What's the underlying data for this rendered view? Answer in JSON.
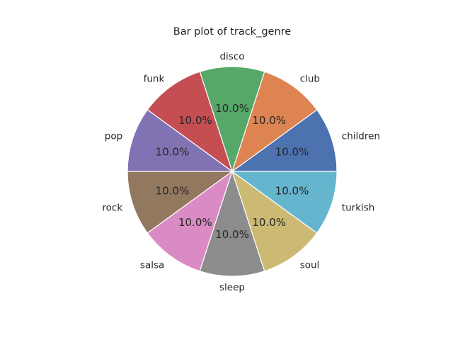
{
  "chart_data": {
    "type": "pie",
    "title": "Bar plot of track_genre",
    "categories": [
      "children",
      "club",
      "disco",
      "funk",
      "pop",
      "rock",
      "salsa",
      "sleep",
      "soul",
      "turkish"
    ],
    "values": [
      10,
      10,
      10,
      10,
      10,
      10,
      10,
      10,
      10,
      10
    ],
    "percent_labels": [
      "10.0%",
      "10.0%",
      "10.0%",
      "10.0%",
      "10.0%",
      "10.0%",
      "10.0%",
      "10.0%",
      "10.0%",
      "10.0%"
    ],
    "colors": [
      "#4c72b0",
      "#dd8452",
      "#55a868",
      "#c44e52",
      "#8172b3",
      "#937860",
      "#da8bc3",
      "#8c8c8c",
      "#ccb974",
      "#64b5cd"
    ],
    "start_angle_deg": 0,
    "direction": "counterclockwise",
    "legend": "none"
  }
}
